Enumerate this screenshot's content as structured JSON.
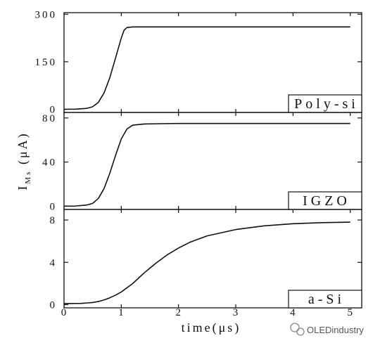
{
  "chart_data": {
    "type": "line",
    "xlabel": "time(μs)",
    "ylabel": "I_Ms (μA)",
    "xlim": [
      0,
      5.2
    ],
    "x_ticks": [
      0,
      1,
      2,
      3,
      4,
      5
    ],
    "grid": false,
    "panels": [
      {
        "label": "Poly-si",
        "ylim": [
          -10,
          305
        ],
        "y_ticks": [
          "0",
          "150",
          "300"
        ],
        "series": [
          {
            "x": [
              0,
              0.2,
              0.4,
              0.5,
              0.6,
              0.7,
              0.8,
              0.9,
              1.0,
              1.05,
              1.1,
              1.2,
              1.5,
              2,
              3,
              4,
              5
            ],
            "y": [
              0,
              0.3,
              3,
              8,
              22,
              52,
              100,
              162,
              225,
              250,
              258,
              260,
              260,
              260,
              260,
              260,
              260
            ]
          }
        ]
      },
      {
        "label": "IGZO",
        "ylim": [
          -3,
          85
        ],
        "y_ticks": [
          "0",
          "40",
          "80"
        ],
        "series": [
          {
            "x": [
              0,
              0.2,
              0.4,
              0.5,
              0.6,
              0.7,
              0.8,
              0.9,
              1.0,
              1.1,
              1.2,
              1.4,
              1.7,
              2,
              3,
              4,
              5
            ],
            "y": [
              0,
              0.1,
              1,
              2.5,
              7,
              16,
              30,
              46,
              61,
              70,
              73.5,
              74.5,
              74.8,
              75,
              75,
              75,
              75
            ]
          }
        ]
      },
      {
        "label": "a-Si",
        "ylim": [
          -0.3,
          9
        ],
        "y_ticks": [
          "0",
          "4",
          "8"
        ],
        "series": [
          {
            "x": [
              0,
              0.3,
              0.5,
              0.6,
              0.7,
              0.8,
              0.9,
              1.0,
              1.2,
              1.4,
              1.6,
              1.8,
              2.0,
              2.2,
              2.5,
              3.0,
              3.5,
              4.0,
              4.5,
              5.0
            ],
            "y": [
              0.1,
              0.12,
              0.2,
              0.3,
              0.45,
              0.65,
              0.9,
              1.2,
              2.0,
              3.0,
              3.9,
              4.7,
              5.35,
              5.9,
              6.5,
              7.1,
              7.45,
              7.65,
              7.75,
              7.8
            ]
          }
        ]
      }
    ]
  },
  "watermark": {
    "text": "OLEDindustry",
    "icon": "wechat-icon"
  }
}
